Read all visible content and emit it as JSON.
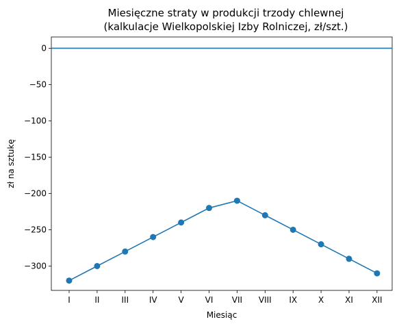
{
  "chart_data": {
    "type": "line",
    "title": "Miesięczne straty w produkcji trzody chlewnej",
    "subtitle": "(kalkulacje Wielkopolskiej Izby Rolniczej, zł/szt.)",
    "xlabel": "Miesiąc",
    "ylabel": "zł na sztukę",
    "categories": [
      "I",
      "II",
      "III",
      "IV",
      "V",
      "VI",
      "VII",
      "VIII",
      "IX",
      "X",
      "XI",
      "XII"
    ],
    "series": [
      {
        "values": [
          -320,
          -300,
          -280,
          -260,
          -240,
          -220,
          -210,
          -230,
          -250,
          -270,
          -290,
          -310
        ],
        "color": "#1f77b4"
      }
    ],
    "reference_line": {
      "y": 0,
      "color": "#1f77b4"
    },
    "yticks": [
      0,
      -50,
      -100,
      -150,
      -200,
      -250,
      -300
    ],
    "ytick_labels": [
      "0",
      "−50",
      "−100",
      "−150",
      "−200",
      "−250",
      "−300"
    ],
    "ylim": [
      -333.5,
      15.5
    ],
    "grid": false,
    "legend": "none"
  }
}
